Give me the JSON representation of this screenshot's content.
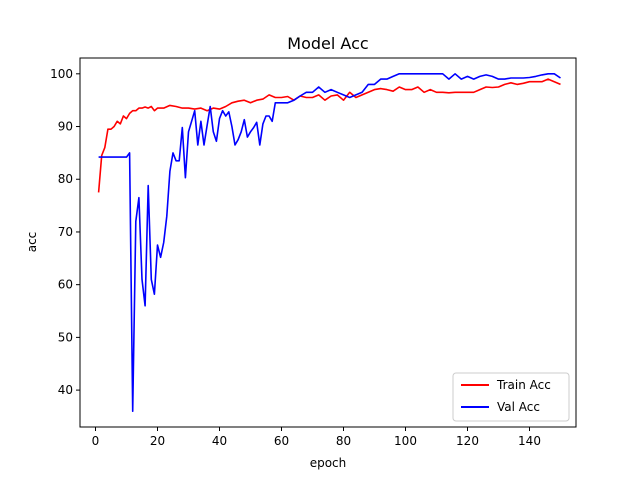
{
  "chart_data": {
    "type": "line",
    "title": "Model Acc",
    "xlabel": "epoch",
    "ylabel": "acc",
    "xlim": [
      -5,
      155
    ],
    "ylim": [
      33,
      103
    ],
    "xticks": [
      0,
      20,
      40,
      60,
      80,
      100,
      120,
      140
    ],
    "yticks": [
      40,
      50,
      60,
      70,
      80,
      90,
      100
    ],
    "grid": false,
    "legend_position": "lower-right",
    "series": [
      {
        "name": "Train Acc",
        "color": "#ff0000",
        "x": [
          1,
          2,
          3,
          4,
          5,
          6,
          7,
          8,
          9,
          10,
          11,
          12,
          13,
          14,
          15,
          16,
          17,
          18,
          19,
          20,
          22,
          24,
          26,
          28,
          30,
          32,
          34,
          36,
          38,
          40,
          42,
          44,
          46,
          48,
          50,
          52,
          54,
          56,
          58,
          60,
          62,
          64,
          66,
          68,
          70,
          72,
          74,
          76,
          78,
          80,
          82,
          84,
          86,
          88,
          90,
          92,
          94,
          96,
          98,
          100,
          102,
          104,
          106,
          108,
          110,
          112,
          114,
          116,
          118,
          120,
          122,
          124,
          126,
          128,
          130,
          132,
          134,
          136,
          138,
          140,
          142,
          144,
          146,
          148,
          150
        ],
        "y": [
          77.5,
          84.5,
          86,
          89.5,
          89.5,
          90,
          91,
          90.5,
          92,
          91.5,
          92.5,
          93,
          93,
          93.5,
          93.5,
          93.7,
          93.5,
          93.8,
          93,
          93.5,
          93.5,
          94,
          93.8,
          93.5,
          93.5,
          93.3,
          93.5,
          93,
          93.5,
          93.3,
          93.8,
          94.5,
          94.8,
          95,
          94.5,
          95,
          95.2,
          96,
          95.5,
          95.5,
          95.7,
          95,
          95.8,
          95.5,
          95.5,
          96,
          95,
          95.8,
          96,
          95,
          96.5,
          95.5,
          96,
          96.5,
          97,
          97.2,
          97,
          96.7,
          97.5,
          97,
          97,
          97.5,
          96.5,
          97,
          96.5,
          96.5,
          96.4,
          96.5,
          96.5,
          96.5,
          96.5,
          97,
          97.5,
          97.4,
          97.5,
          98,
          98.3,
          98,
          98.2,
          98.5,
          98.5,
          98.5,
          99,
          98.5,
          98
        ]
      },
      {
        "name": "Val Acc",
        "color": "#0000ff",
        "x": [
          1,
          2,
          3,
          4,
          5,
          6,
          7,
          8,
          9,
          10,
          11,
          12,
          13,
          14,
          15,
          16,
          17,
          18,
          19,
          20,
          21,
          22,
          23,
          24,
          25,
          26,
          27,
          28,
          29,
          30,
          31,
          32,
          33,
          34,
          35,
          36,
          37,
          38,
          39,
          40,
          41,
          42,
          43,
          44,
          45,
          46,
          47,
          48,
          49,
          50,
          51,
          52,
          53,
          54,
          55,
          56,
          57,
          58,
          59,
          60,
          62,
          64,
          66,
          68,
          70,
          72,
          74,
          76,
          78,
          80,
          82,
          84,
          86,
          88,
          90,
          92,
          94,
          96,
          98,
          100,
          102,
          104,
          106,
          108,
          110,
          112,
          114,
          116,
          118,
          120,
          122,
          124,
          126,
          128,
          130,
          132,
          134,
          136,
          138,
          140,
          142,
          144,
          146,
          148,
          150
        ],
        "y": [
          84.2,
          84.2,
          84.2,
          84.2,
          84.2,
          84.2,
          84.2,
          84.2,
          84.2,
          84.2,
          85,
          36,
          72,
          76.5,
          61,
          56,
          78.8,
          61,
          58.2,
          67.5,
          65.2,
          68,
          73,
          81.5,
          85,
          83.5,
          83.5,
          89.8,
          80.3,
          89,
          91,
          93,
          86.5,
          91,
          86.5,
          90.2,
          93.8,
          89,
          87.2,
          91.5,
          93,
          92,
          92.8,
          90,
          86.5,
          87.5,
          89,
          91.3,
          88,
          89,
          89.8,
          90.8,
          86.5,
          90.5,
          92,
          92,
          91,
          94.5,
          94.5,
          94.5,
          94.5,
          95,
          95.8,
          96.5,
          96.5,
          97.5,
          96.5,
          97,
          96.5,
          96,
          95.5,
          96,
          96.5,
          98,
          98,
          99,
          99,
          99.5,
          100,
          100,
          100,
          100,
          100,
          100,
          100,
          100,
          99,
          100,
          99,
          99.5,
          99,
          99.5,
          99.8,
          99.5,
          99,
          99,
          99.2,
          99.2,
          99.2,
          99.3,
          99.5,
          99.8,
          100,
          100,
          99.2
        ]
      }
    ]
  }
}
